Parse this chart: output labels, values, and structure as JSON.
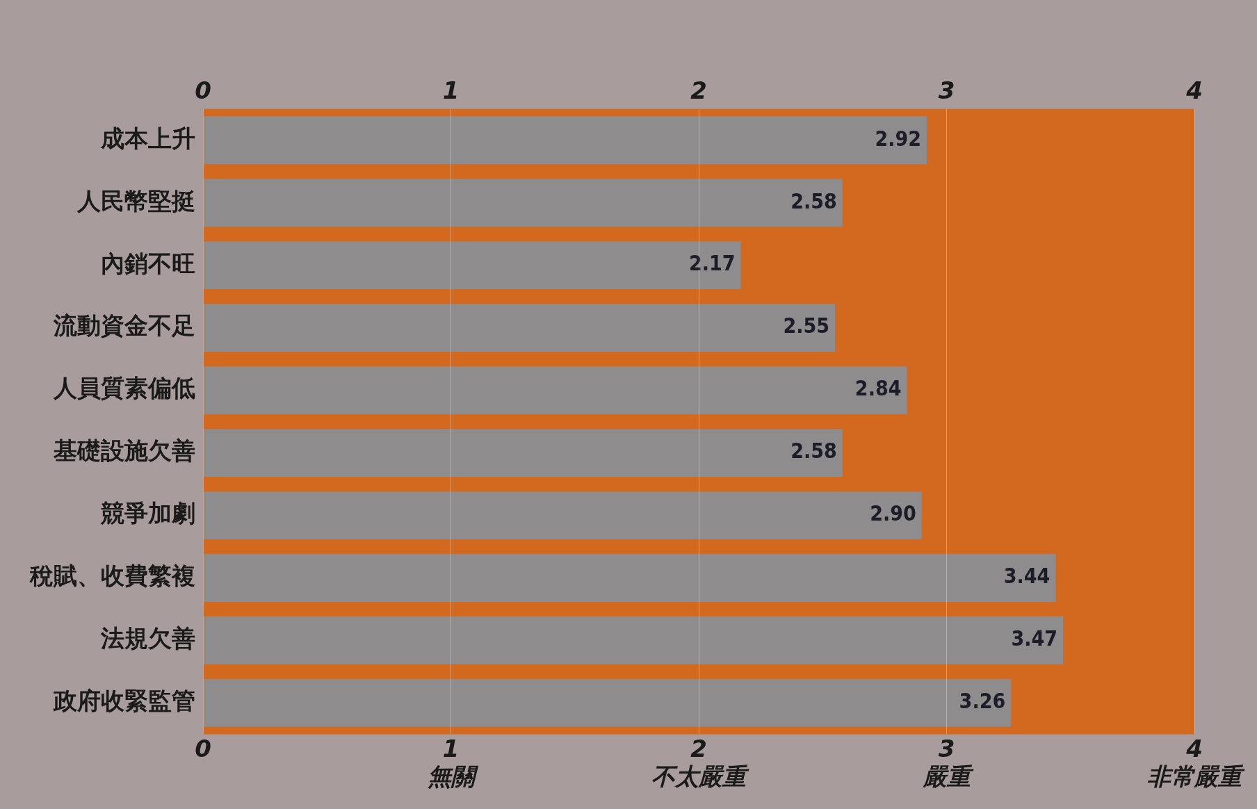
{
  "chart_data": {
    "type": "bar",
    "orientation": "horizontal",
    "categories": [
      "成本上升",
      "人民幣堅挺",
      "內銷不旺",
      "流動資金不足",
      "人員質素偏低",
      "基礎設施欠善",
      "競爭加劇",
      "稅賦、收費繁複",
      "法規欠善",
      "政府收緊監管"
    ],
    "values": [
      2.92,
      2.58,
      2.17,
      2.55,
      2.84,
      2.58,
      2.9,
      3.44,
      3.47,
      3.26
    ],
    "value_labels": [
      "2.92",
      "2.58",
      "2.17",
      "2.55",
      "2.84",
      "2.58",
      "2.90",
      "3.44",
      "3.47",
      "3.26"
    ],
    "color": "#8e8c8c",
    "xlim": [
      0,
      4
    ],
    "xticks": [
      0,
      {
        "value": 1,
        "label": "1\n無關"
      },
      {
        "value": 2,
        "label": "2\n不太嚴重"
      },
      {
        "value": 3,
        "label": "3\n嚴重"
      },
      {
        "value": 4,
        "label": "4\n非常嚴重"
      }
    ],
    "x2lim": [
      0,
      4
    ],
    "x2ticks": [
      0,
      1,
      2,
      3,
      4
    ],
    "bands": [
      {
        "axis": "x",
        "from": 0,
        "to": 4,
        "color": "#d2691f"
      }
    ],
    "grid": "x",
    "legend": false
  }
}
